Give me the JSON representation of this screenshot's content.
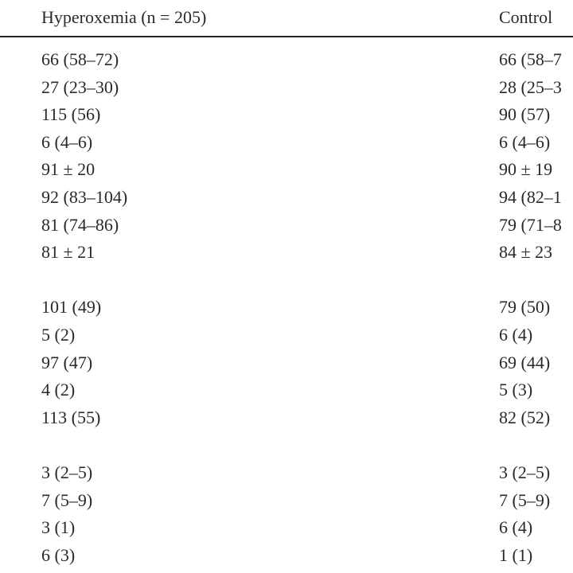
{
  "table": {
    "header": [
      "Hyperoxemia (n = 205)",
      "Control"
    ],
    "groups": [
      {
        "rows": [
          [
            "66 (58–72)",
            "66 (58–7"
          ],
          [
            "27 (23–30)",
            "28 (25–3"
          ],
          [
            "115 (56)",
            "90 (57)"
          ],
          [
            "6 (4–6)",
            "6 (4–6)"
          ],
          [
            "91 ± 20",
            "90 ± 19"
          ],
          [
            "92 (83–104)",
            "94 (82–1"
          ],
          [
            "81 (74–86)",
            "79 (71–8"
          ],
          [
            "81 ± 21",
            "84 ± 23"
          ]
        ]
      },
      {
        "rows": [
          [
            "101 (49)",
            "79 (50)"
          ],
          [
            "5 (2)",
            "6 (4)"
          ],
          [
            "97 (47)",
            "69 (44)"
          ],
          [
            "4 (2)",
            "5 (3)"
          ],
          [
            "113 (55)",
            "82 (52)"
          ]
        ]
      },
      {
        "rows": [
          [
            "3 (2–5)",
            "3 (2–5)"
          ],
          [
            "7 (5–9)",
            "7 (5–9)"
          ],
          [
            "3 (1)",
            "6 (4)"
          ],
          [
            "6 (3)",
            "1 (1)"
          ]
        ]
      }
    ]
  }
}
